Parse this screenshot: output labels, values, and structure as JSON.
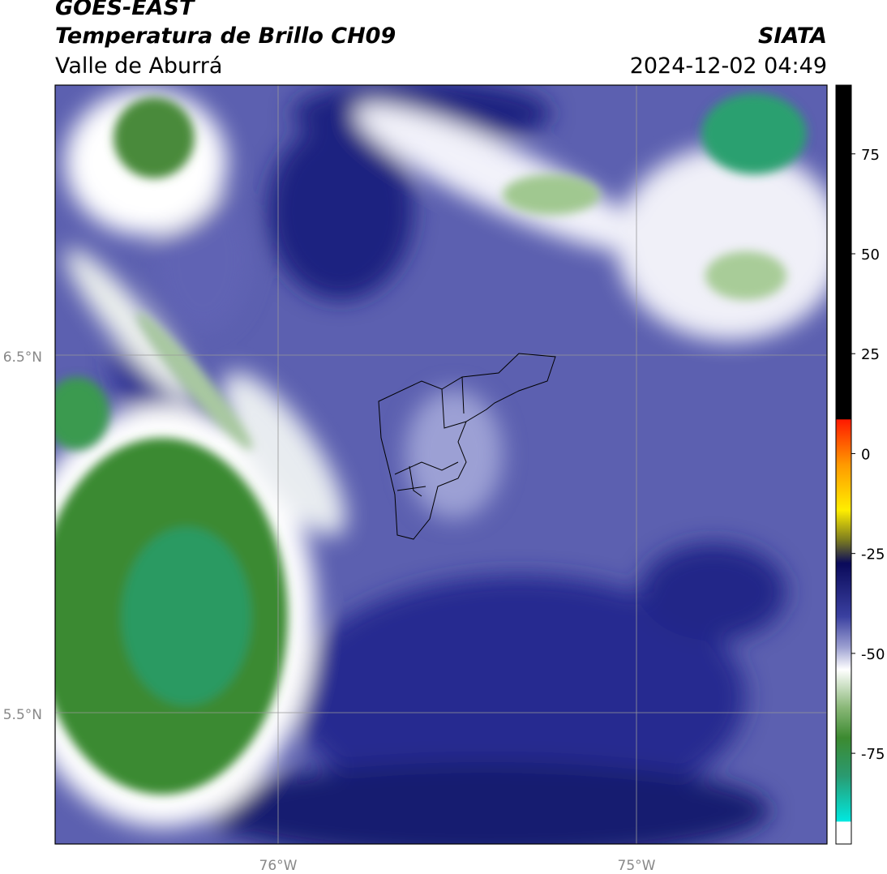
{
  "header": {
    "title": "GOES-EAST",
    "subtitle": "Temperatura de Brillo CH09",
    "region": "Valle de Aburrá",
    "source": "SIATA",
    "datetime": "2024-12-02 04:49"
  },
  "map": {
    "lat_ticks": [
      "6.5°N",
      "5.5°N"
    ],
    "lon_ticks": [
      "76°W",
      "75°W"
    ]
  },
  "colorbar": {
    "lim": [
      -97.7,
      92.2
    ],
    "ticks": [
      75,
      50,
      25,
      0,
      -25,
      -50,
      -75
    ]
  }
}
